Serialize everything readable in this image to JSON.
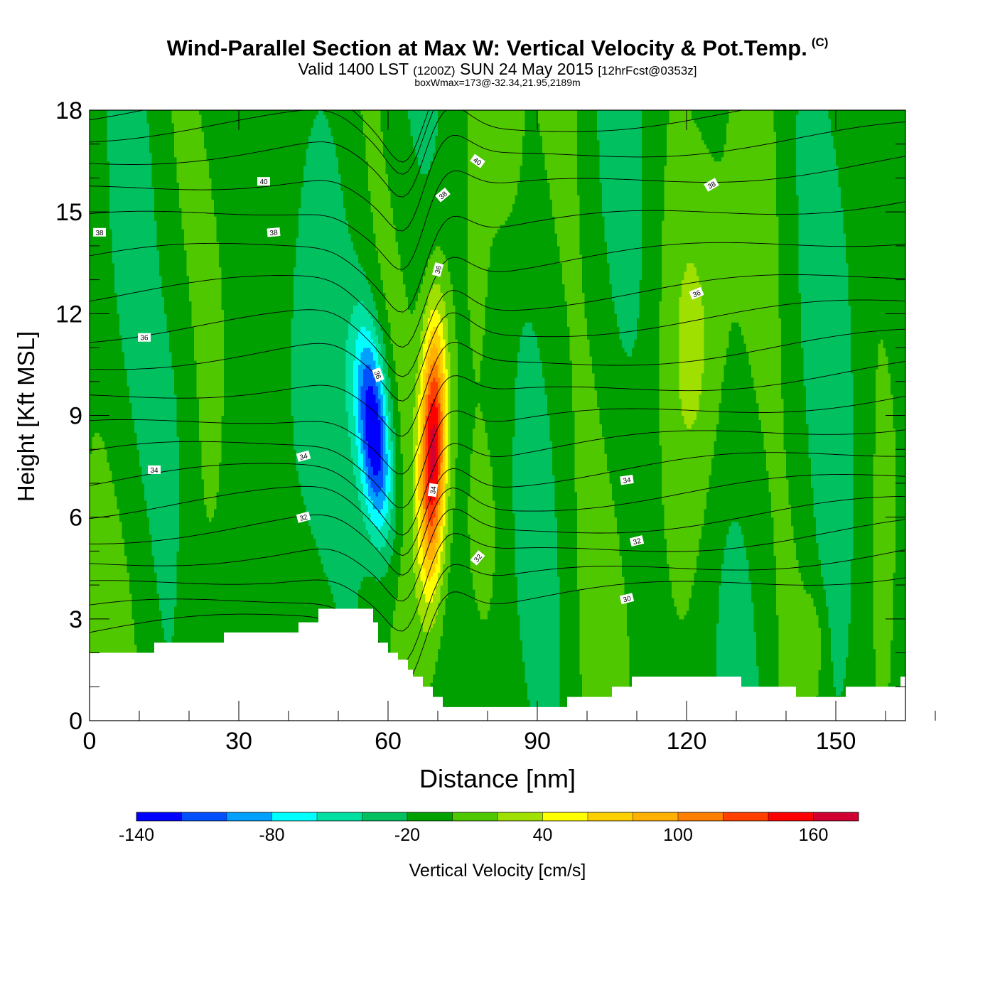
{
  "header": {
    "title": "Wind-Parallel Section at Max W: Vertical Velocity & Pot.Temp.",
    "copyright_mark": "(C)",
    "subtitle_valid": "Valid 1400 LST",
    "subtitle_zulu": "(1200Z)",
    "subtitle_date": "SUN 24 May 2015",
    "subtitle_forecast": "[12hrFcst@0353z]",
    "stat_line": "boxWmax=173@-32.34,21.95,2189m"
  },
  "chart_data": {
    "type": "contour-filled cross section",
    "xlabel": "Distance [nm]",
    "ylabel": "Height [Kft MSL]",
    "xlim": [
      0,
      164
    ],
    "ylim": [
      0,
      18
    ],
    "x_ticks": [
      0,
      30,
      60,
      90,
      120,
      150
    ],
    "y_ticks": [
      0,
      3,
      6,
      9,
      12,
      15,
      18
    ],
    "colorbar": {
      "label": "Vertical Velocity [cm/s]",
      "levels": [
        -140,
        -120,
        -100,
        -80,
        -60,
        -40,
        -20,
        0,
        20,
        40,
        60,
        80,
        100,
        120,
        140,
        160,
        180
      ],
      "tick_labels": [
        "-140",
        "-80",
        "-20",
        "40",
        "100",
        "160"
      ],
      "colors": [
        "#0000ff",
        "#0050ff",
        "#00a0ff",
        "#00ffff",
        "#00e0a0",
        "#00c060",
        "#00a000",
        "#50c800",
        "#a0e000",
        "#ffff00",
        "#ffd000",
        "#ffb000",
        "#ff8000",
        "#ff4000",
        "#ff0000",
        "#d00030"
      ]
    },
    "features": [
      {
        "name": "downdraft",
        "x_center": 58,
        "height_range": [
          3.5,
          12
        ],
        "min_value": -140
      },
      {
        "name": "updraft",
        "x_center": 69,
        "height_range": [
          1.5,
          15.5
        ],
        "max_value": 173
      }
    ],
    "terrain_height_kft": [
      [
        0,
        2.0
      ],
      [
        12,
        2.0
      ],
      [
        13,
        2.3
      ],
      [
        26,
        2.3
      ],
      [
        27,
        2.6
      ],
      [
        41,
        2.6
      ],
      [
        42,
        2.9
      ],
      [
        45,
        2.9
      ],
      [
        46,
        3.3
      ],
      [
        56,
        3.3
      ],
      [
        57,
        2.9
      ],
      [
        58,
        2.3
      ],
      [
        60,
        2.0
      ],
      [
        62,
        1.8
      ],
      [
        64,
        1.5
      ],
      [
        65,
        1.3
      ],
      [
        67,
        1.0
      ],
      [
        69,
        0.7
      ],
      [
        71,
        0.4
      ],
      [
        95,
        0.4
      ],
      [
        96,
        0.7
      ],
      [
        104,
        0.7
      ],
      [
        105,
        1.0
      ],
      [
        108,
        1.0
      ],
      [
        109,
        1.3
      ],
      [
        130,
        1.3
      ],
      [
        131,
        1.0
      ],
      [
        141,
        1.0
      ],
      [
        142,
        0.7
      ],
      [
        151,
        0.7
      ],
      [
        152,
        1.0
      ],
      [
        162,
        1.0
      ],
      [
        163,
        1.3
      ],
      [
        164,
        1.3
      ]
    ],
    "theta_contours": [
      {
        "value": "30",
        "x": 108,
        "y": 3.6,
        "angle": -14
      },
      {
        "value": "32",
        "x": 43,
        "y": 6.0,
        "angle": -15
      },
      {
        "value": "32",
        "x": 78,
        "y": 4.8,
        "angle": -50
      },
      {
        "value": "32",
        "x": 110,
        "y": 5.3,
        "angle": -14
      },
      {
        "value": "34",
        "x": 13,
        "y": 7.4,
        "angle": 0
      },
      {
        "value": "34",
        "x": 43,
        "y": 7.8,
        "angle": -15
      },
      {
        "value": "34",
        "x": 69,
        "y": 6.8,
        "angle": -82
      },
      {
        "value": "34",
        "x": 108,
        "y": 7.1,
        "angle": -8
      },
      {
        "value": "36",
        "x": 11,
        "y": 11.3,
        "angle": 0
      },
      {
        "value": "36",
        "x": 58,
        "y": 10.2,
        "angle": 70
      },
      {
        "value": "36",
        "x": 70,
        "y": 13.3,
        "angle": -75
      },
      {
        "value": "36",
        "x": 122,
        "y": 12.6,
        "angle": -22
      },
      {
        "value": "38",
        "x": 2,
        "y": 14.4,
        "angle": 0
      },
      {
        "value": "38",
        "x": 37,
        "y": 14.4,
        "angle": -5
      },
      {
        "value": "38",
        "x": 71,
        "y": 15.5,
        "angle": -40
      },
      {
        "value": "38",
        "x": 125,
        "y": 15.8,
        "angle": -30
      },
      {
        "value": "40",
        "x": 35,
        "y": 15.9,
        "angle": 0
      },
      {
        "value": "40",
        "x": 78,
        "y": 16.5,
        "angle": 35
      }
    ]
  }
}
